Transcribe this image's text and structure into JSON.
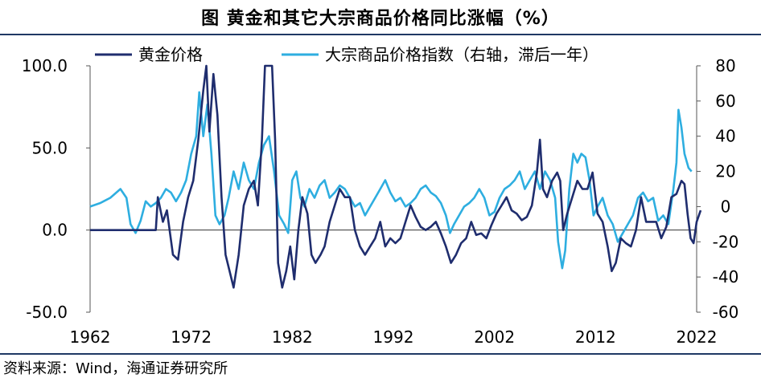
{
  "header": {
    "title": "图  黄金和其它大宗商品价格同比涨幅（%）"
  },
  "footer": {
    "source": "资料来源：Wind，海通证券研究所"
  },
  "chart_data": {
    "type": "line",
    "title": "图  黄金和其它大宗商品价格同比涨幅（%）",
    "x_ticks": [
      "1962",
      "1972",
      "1982",
      "1992",
      "2002",
      "2012",
      "2022"
    ],
    "x_range": [
      1962,
      2022
    ],
    "y_left": {
      "range": [
        -50,
        100
      ],
      "ticks": [
        "100.0",
        "50.0",
        "0.0",
        "-50.0"
      ],
      "tick_values": [
        100,
        50,
        0,
        -50
      ]
    },
    "y_right": {
      "range": [
        -60,
        80
      ],
      "ticks": [
        "80",
        "60",
        "40",
        "20",
        "0",
        "-20",
        "-40",
        "-60"
      ],
      "tick_values": [
        80,
        60,
        40,
        20,
        0,
        -20,
        -40,
        -60
      ]
    },
    "legend_position": "top",
    "grid": false,
    "series": [
      {
        "name": "黄金价格",
        "axis": "left",
        "color": "#1f2d6e",
        "points": [
          [
            1962,
            0
          ],
          [
            1968.0,
            0
          ],
          [
            1968.5,
            0
          ],
          [
            1968.7,
            20
          ],
          [
            1969.2,
            5
          ],
          [
            1969.6,
            12
          ],
          [
            1970.2,
            -15
          ],
          [
            1970.7,
            -18
          ],
          [
            1971.2,
            5
          ],
          [
            1971.7,
            20
          ],
          [
            1972.2,
            30
          ],
          [
            1972.7,
            55
          ],
          [
            1973.2,
            85
          ],
          [
            1973.5,
            100
          ],
          [
            1973.8,
            60
          ],
          [
            1974.2,
            95
          ],
          [
            1974.6,
            70
          ],
          [
            1975.0,
            20
          ],
          [
            1975.4,
            -15
          ],
          [
            1975.8,
            -25
          ],
          [
            1976.2,
            -35
          ],
          [
            1976.7,
            -15
          ],
          [
            1977.2,
            15
          ],
          [
            1977.7,
            25
          ],
          [
            1978.2,
            30
          ],
          [
            1978.6,
            15
          ],
          [
            1979.0,
            55
          ],
          [
            1979.3,
            100
          ],
          [
            1979.7,
            100
          ],
          [
            1980.0,
            100
          ],
          [
            1980.3,
            55
          ],
          [
            1980.6,
            -20
          ],
          [
            1981.0,
            -35
          ],
          [
            1981.4,
            -25
          ],
          [
            1981.8,
            -10
          ],
          [
            1982.2,
            -30
          ],
          [
            1982.6,
            0
          ],
          [
            1983.0,
            20
          ],
          [
            1983.5,
            10
          ],
          [
            1983.9,
            -15
          ],
          [
            1984.3,
            -20
          ],
          [
            1984.8,
            -15
          ],
          [
            1985.2,
            -10
          ],
          [
            1985.7,
            5
          ],
          [
            1986.2,
            15
          ],
          [
            1986.7,
            25
          ],
          [
            1987.2,
            20
          ],
          [
            1987.7,
            20
          ],
          [
            1988.2,
            0
          ],
          [
            1988.7,
            -10
          ],
          [
            1989.2,
            -15
          ],
          [
            1989.7,
            -10
          ],
          [
            1990.2,
            -5
          ],
          [
            1990.7,
            5
          ],
          [
            1991.2,
            -10
          ],
          [
            1991.7,
            -5
          ],
          [
            1992.2,
            -8
          ],
          [
            1992.7,
            -5
          ],
          [
            1993.2,
            5
          ],
          [
            1993.7,
            15
          ],
          [
            1994.2,
            8
          ],
          [
            1994.7,
            2
          ],
          [
            1995.2,
            0
          ],
          [
            1995.7,
            2
          ],
          [
            1996.2,
            5
          ],
          [
            1996.7,
            -2
          ],
          [
            1997.2,
            -10
          ],
          [
            1997.7,
            -20
          ],
          [
            1998.2,
            -15
          ],
          [
            1998.7,
            -8
          ],
          [
            1999.2,
            -5
          ],
          [
            1999.7,
            5
          ],
          [
            2000.2,
            -3
          ],
          [
            2000.7,
            -2
          ],
          [
            2001.2,
            -5
          ],
          [
            2001.7,
            3
          ],
          [
            2002.2,
            10
          ],
          [
            2002.7,
            15
          ],
          [
            2003.2,
            20
          ],
          [
            2003.7,
            12
          ],
          [
            2004.2,
            10
          ],
          [
            2004.7,
            6
          ],
          [
            2005.2,
            8
          ],
          [
            2005.7,
            15
          ],
          [
            2006.2,
            35
          ],
          [
            2006.5,
            55
          ],
          [
            2006.8,
            25
          ],
          [
            2007.2,
            20
          ],
          [
            2007.7,
            30
          ],
          [
            2008.2,
            35
          ],
          [
            2008.5,
            30
          ],
          [
            2008.8,
            0
          ],
          [
            2009.2,
            10
          ],
          [
            2009.7,
            20
          ],
          [
            2010.2,
            30
          ],
          [
            2010.7,
            25
          ],
          [
            2011.2,
            25
          ],
          [
            2011.7,
            35
          ],
          [
            2012.2,
            10
          ],
          [
            2012.7,
            5
          ],
          [
            2013.2,
            -10
          ],
          [
            2013.6,
            -25
          ],
          [
            2014.0,
            -20
          ],
          [
            2014.5,
            -5
          ],
          [
            2015.0,
            -8
          ],
          [
            2015.5,
            -10
          ],
          [
            2016.0,
            0
          ],
          [
            2016.5,
            20
          ],
          [
            2017.0,
            5
          ],
          [
            2017.5,
            5
          ],
          [
            2018.0,
            5
          ],
          [
            2018.5,
            -5
          ],
          [
            2019.0,
            2
          ],
          [
            2019.5,
            20
          ],
          [
            2020.0,
            22
          ],
          [
            2020.5,
            30
          ],
          [
            2020.8,
            28
          ],
          [
            2021.1,
            10
          ],
          [
            2021.4,
            -5
          ],
          [
            2021.7,
            -8
          ],
          [
            2022.0,
            5
          ],
          [
            2022.4,
            12
          ]
        ]
      },
      {
        "name": "大宗商品价格指数（右轴，滞后一年）",
        "axis": "right",
        "color": "#2eaee0",
        "points": [
          [
            1962,
            0
          ],
          [
            1963.0,
            2
          ],
          [
            1964.0,
            5
          ],
          [
            1965.0,
            10
          ],
          [
            1965.6,
            5
          ],
          [
            1966.0,
            -10
          ],
          [
            1966.5,
            -15
          ],
          [
            1967.0,
            -8
          ],
          [
            1967.5,
            3
          ],
          [
            1968.0,
            0
          ],
          [
            1968.5,
            2
          ],
          [
            1969.0,
            5
          ],
          [
            1969.5,
            10
          ],
          [
            1970.0,
            8
          ],
          [
            1970.5,
            3
          ],
          [
            1971.0,
            8
          ],
          [
            1971.5,
            15
          ],
          [
            1972.0,
            30
          ],
          [
            1972.5,
            40
          ],
          [
            1972.8,
            65
          ],
          [
            1973.2,
            40
          ],
          [
            1973.6,
            58
          ],
          [
            1974.0,
            30
          ],
          [
            1974.4,
            -5
          ],
          [
            1974.8,
            -10
          ],
          [
            1975.3,
            -5
          ],
          [
            1975.7,
            5
          ],
          [
            1976.2,
            20
          ],
          [
            1976.7,
            10
          ],
          [
            1977.2,
            25
          ],
          [
            1977.7,
            15
          ],
          [
            1978.2,
            10
          ],
          [
            1978.7,
            25
          ],
          [
            1979.2,
            35
          ],
          [
            1979.7,
            40
          ],
          [
            1980.2,
            20
          ],
          [
            1980.7,
            -5
          ],
          [
            1981.2,
            -10
          ],
          [
            1981.6,
            -15
          ],
          [
            1982.0,
            15
          ],
          [
            1982.4,
            20
          ],
          [
            1982.8,
            5
          ],
          [
            1983.2,
            0
          ],
          [
            1983.7,
            10
          ],
          [
            1984.2,
            5
          ],
          [
            1984.7,
            12
          ],
          [
            1985.2,
            15
          ],
          [
            1985.7,
            5
          ],
          [
            1986.2,
            8
          ],
          [
            1986.7,
            12
          ],
          [
            1987.2,
            10
          ],
          [
            1987.7,
            5
          ],
          [
            1988.2,
            0
          ],
          [
            1988.7,
            2
          ],
          [
            1989.2,
            -5
          ],
          [
            1989.7,
            0
          ],
          [
            1990.2,
            5
          ],
          [
            1990.7,
            10
          ],
          [
            1991.2,
            15
          ],
          [
            1991.7,
            8
          ],
          [
            1992.2,
            3
          ],
          [
            1992.7,
            5
          ],
          [
            1993.2,
            0
          ],
          [
            1993.7,
            2
          ],
          [
            1994.2,
            5
          ],
          [
            1994.7,
            10
          ],
          [
            1995.2,
            12
          ],
          [
            1995.7,
            8
          ],
          [
            1996.2,
            6
          ],
          [
            1996.7,
            2
          ],
          [
            1997.2,
            -5
          ],
          [
            1997.6,
            -15
          ],
          [
            1998.0,
            -10
          ],
          [
            1998.5,
            -5
          ],
          [
            1999.0,
            0
          ],
          [
            1999.5,
            2
          ],
          [
            2000.0,
            5
          ],
          [
            2000.5,
            10
          ],
          [
            2001.0,
            5
          ],
          [
            2001.5,
            -5
          ],
          [
            2002.0,
            -3
          ],
          [
            2002.5,
            5
          ],
          [
            2003.0,
            10
          ],
          [
            2003.5,
            12
          ],
          [
            2004.0,
            15
          ],
          [
            2004.5,
            20
          ],
          [
            2005.0,
            10
          ],
          [
            2005.5,
            15
          ],
          [
            2006.0,
            20
          ],
          [
            2006.5,
            10
          ],
          [
            2007.0,
            20
          ],
          [
            2007.5,
            15
          ],
          [
            2008.0,
            5
          ],
          [
            2008.3,
            -20
          ],
          [
            2008.7,
            -35
          ],
          [
            2009.0,
            -25
          ],
          [
            2009.4,
            10
          ],
          [
            2009.8,
            30
          ],
          [
            2010.2,
            25
          ],
          [
            2010.6,
            30
          ],
          [
            2011.0,
            28
          ],
          [
            2011.4,
            15
          ],
          [
            2011.8,
            -5
          ],
          [
            2012.2,
            0
          ],
          [
            2012.7,
            5
          ],
          [
            2013.2,
            -5
          ],
          [
            2013.7,
            -10
          ],
          [
            2014.2,
            -20
          ],
          [
            2014.7,
            -15
          ],
          [
            2015.2,
            -10
          ],
          [
            2015.7,
            -5
          ],
          [
            2016.2,
            5
          ],
          [
            2016.7,
            8
          ],
          [
            2017.2,
            3
          ],
          [
            2017.7,
            5
          ],
          [
            2018.2,
            -8
          ],
          [
            2018.7,
            -5
          ],
          [
            2019.2,
            -10
          ],
          [
            2019.7,
            10
          ],
          [
            2020.0,
            25
          ],
          [
            2020.2,
            55
          ],
          [
            2020.5,
            45
          ],
          [
            2020.8,
            30
          ],
          [
            2021.2,
            22
          ],
          [
            2021.5,
            20
          ]
        ]
      }
    ]
  }
}
